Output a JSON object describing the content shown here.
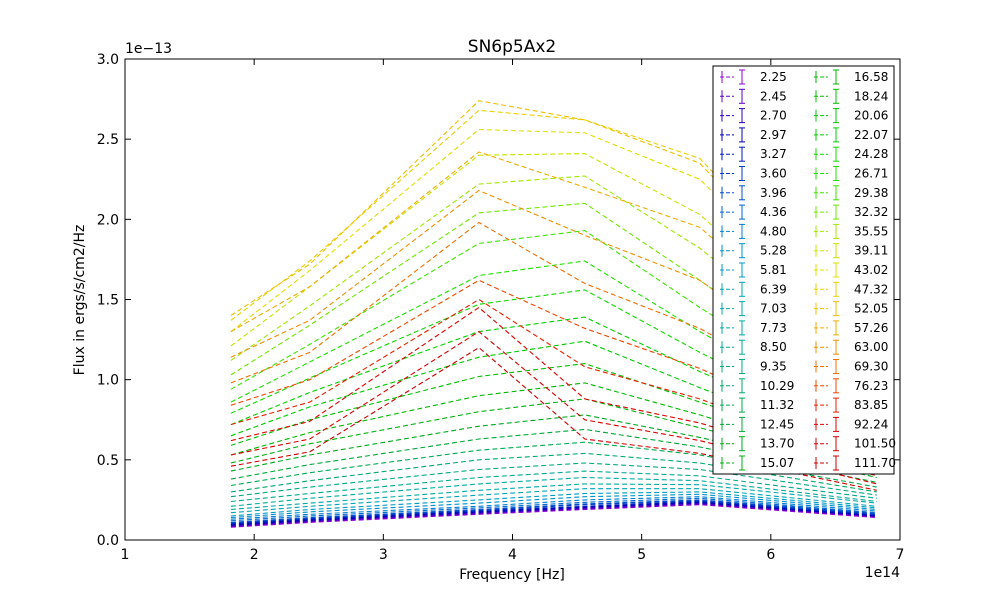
{
  "chart_data": {
    "type": "line",
    "title": "SN6p5Ax2",
    "xlabel": "Frequency [Hz]",
    "ylabel": "Flux in ergs/s/cm2/Hz",
    "x_multiplier_label": "1e14",
    "y_multiplier_label": "1e−13",
    "xlim": [
      1,
      7
    ],
    "ylim": [
      0,
      3.0
    ],
    "x_ticks": [
      1,
      2,
      3,
      4,
      5,
      6,
      7
    ],
    "y_ticks": [
      0.0,
      0.5,
      1.0,
      1.5,
      2.0,
      2.5,
      3.0
    ],
    "x_tick_labels": [
      "1",
      "2",
      "3",
      "4",
      "5",
      "6",
      "7"
    ],
    "y_tick_labels": [
      "0.0",
      "0.5",
      "1.0",
      "1.5",
      "2.0",
      "2.5",
      "3.0"
    ],
    "grid": false,
    "legend_position": "top-right",
    "line_style": "dashed",
    "x": [
      1.82,
      2.43,
      3.74,
      4.56,
      5.45,
      6.82
    ],
    "series": [
      {
        "name": "2.25",
        "color": "#9400d3",
        "values": [
          0.08,
          0.11,
          0.16,
          0.19,
          0.22,
          0.14
        ]
      },
      {
        "name": "2.45",
        "color": "#5a00c8",
        "values": [
          0.085,
          0.115,
          0.165,
          0.195,
          0.225,
          0.145
        ]
      },
      {
        "name": "2.70",
        "color": "#2a00c0",
        "values": [
          0.09,
          0.12,
          0.17,
          0.2,
          0.23,
          0.15
        ]
      },
      {
        "name": "2.97",
        "color": "#0000b8",
        "values": [
          0.095,
          0.125,
          0.175,
          0.205,
          0.235,
          0.15
        ]
      },
      {
        "name": "3.27",
        "color": "#0018c0",
        "values": [
          0.1,
          0.13,
          0.18,
          0.21,
          0.24,
          0.155
        ]
      },
      {
        "name": "3.60",
        "color": "#0038c8",
        "values": [
          0.105,
          0.135,
          0.185,
          0.22,
          0.245,
          0.16
        ]
      },
      {
        "name": "3.96",
        "color": "#0050cc",
        "values": [
          0.11,
          0.14,
          0.19,
          0.225,
          0.25,
          0.165
        ]
      },
      {
        "name": "4.36",
        "color": "#0068d0",
        "values": [
          0.12,
          0.15,
          0.2,
          0.235,
          0.26,
          0.17
        ]
      },
      {
        "name": "4.80",
        "color": "#0080d0",
        "values": [
          0.13,
          0.16,
          0.21,
          0.25,
          0.27,
          0.18
        ]
      },
      {
        "name": "5.28",
        "color": "#0090cc",
        "values": [
          0.14,
          0.175,
          0.23,
          0.27,
          0.285,
          0.19
        ]
      },
      {
        "name": "5.81",
        "color": "#009cc4",
        "values": [
          0.15,
          0.19,
          0.25,
          0.29,
          0.3,
          0.2
        ]
      },
      {
        "name": "6.39",
        "color": "#00a4b8",
        "values": [
          0.17,
          0.21,
          0.28,
          0.32,
          0.32,
          0.21
        ]
      },
      {
        "name": "7.03",
        "color": "#00a8ac",
        "values": [
          0.19,
          0.23,
          0.31,
          0.35,
          0.345,
          0.23
        ]
      },
      {
        "name": "7.73",
        "color": "#00aaa0",
        "values": [
          0.21,
          0.26,
          0.35,
          0.39,
          0.37,
          0.24
        ]
      },
      {
        "name": "8.50",
        "color": "#00aa90",
        "values": [
          0.24,
          0.29,
          0.39,
          0.43,
          0.4,
          0.26
        ]
      },
      {
        "name": "9.35",
        "color": "#00aa80",
        "values": [
          0.27,
          0.33,
          0.44,
          0.48,
          0.44,
          0.28
        ]
      },
      {
        "name": "10.29",
        "color": "#00aa6a",
        "values": [
          0.3,
          0.37,
          0.5,
          0.54,
          0.48,
          0.3
        ]
      },
      {
        "name": "11.32",
        "color": "#00aa50",
        "values": [
          0.34,
          0.42,
          0.56,
          0.61,
          0.53,
          0.33
        ]
      },
      {
        "name": "12.45",
        "color": "#00a838",
        "values": [
          0.38,
          0.47,
          0.63,
          0.69,
          0.58,
          0.36
        ]
      },
      {
        "name": "13.70",
        "color": "#00a820",
        "values": [
          0.43,
          0.53,
          0.71,
          0.78,
          0.64,
          0.39
        ]
      },
      {
        "name": "15.07",
        "color": "#00b010",
        "values": [
          0.48,
          0.6,
          0.8,
          0.88,
          0.7,
          0.42
        ]
      },
      {
        "name": "16.58",
        "color": "#00b800",
        "values": [
          0.53,
          0.67,
          0.9,
          0.98,
          0.78,
          0.45
        ]
      },
      {
        "name": "18.24",
        "color": "#00c000",
        "values": [
          0.59,
          0.75,
          1.02,
          1.1,
          0.86,
          0.49
        ]
      },
      {
        "name": "20.06",
        "color": "#00c800",
        "values": [
          0.65,
          0.83,
          1.14,
          1.24,
          0.95,
          0.53
        ]
      },
      {
        "name": "22.07",
        "color": "#00d000",
        "values": [
          0.72,
          0.92,
          1.3,
          1.39,
          1.05,
          0.58
        ]
      },
      {
        "name": "24.28",
        "color": "#10d800",
        "values": [
          0.79,
          1.01,
          1.47,
          1.56,
          1.17,
          0.63
        ]
      },
      {
        "name": "26.71",
        "color": "#20e000",
        "values": [
          0.86,
          1.11,
          1.65,
          1.74,
          1.3,
          0.69
        ]
      },
      {
        "name": "29.38",
        "color": "#40e400",
        "values": [
          0.94,
          1.22,
          1.85,
          1.93,
          1.45,
          0.76
        ]
      },
      {
        "name": "32.32",
        "color": "#70e800",
        "values": [
          1.03,
          1.34,
          2.04,
          2.1,
          1.62,
          0.84
        ]
      },
      {
        "name": "35.55",
        "color": "#a0e800",
        "values": [
          1.12,
          1.46,
          2.22,
          2.27,
          1.82,
          0.93
        ]
      },
      {
        "name": "39.11",
        "color": "#c8e400",
        "values": [
          1.21,
          1.58,
          2.4,
          2.41,
          2.03,
          1.03
        ]
      },
      {
        "name": "43.02",
        "color": "#e0e000",
        "values": [
          1.3,
          1.68,
          2.56,
          2.54,
          2.25,
          1.14
        ]
      },
      {
        "name": "47.32",
        "color": "#e8d000",
        "values": [
          1.37,
          1.74,
          2.68,
          2.62,
          2.38,
          1.2
        ]
      },
      {
        "name": "52.05",
        "color": "#f0c000",
        "values": [
          1.4,
          1.72,
          2.74,
          2.62,
          2.35,
          1.17
        ]
      },
      {
        "name": "57.26",
        "color": "#f0ac00",
        "values": [
          1.3,
          1.58,
          2.42,
          2.2,
          1.95,
          1.0
        ]
      },
      {
        "name": "63.00",
        "color": "#f09000",
        "values": [
          1.14,
          1.37,
          2.18,
          1.9,
          1.62,
          0.85
        ]
      },
      {
        "name": "69.30",
        "color": "#f07000",
        "values": [
          0.98,
          1.17,
          1.98,
          1.6,
          1.32,
          0.7
        ]
      },
      {
        "name": "76.23",
        "color": "#f04800",
        "values": [
          0.84,
          1.0,
          1.62,
          1.32,
          1.07,
          0.57
        ]
      },
      {
        "name": "83.85",
        "color": "#e82000",
        "values": [
          0.72,
          0.86,
          1.5,
          1.08,
          0.88,
          0.47
        ]
      },
      {
        "name": "92.24",
        "color": "#e00000",
        "values": [
          0.62,
          0.74,
          1.45,
          0.88,
          0.73,
          0.4
        ]
      },
      {
        "name": "101.50",
        "color": "#d80000",
        "values": [
          0.53,
          0.63,
          1.3,
          0.75,
          0.62,
          0.35
        ]
      },
      {
        "name": "111.70",
        "color": "#cc0000",
        "values": [
          0.46,
          0.55,
          1.2,
          0.63,
          0.54,
          0.31
        ]
      }
    ]
  }
}
